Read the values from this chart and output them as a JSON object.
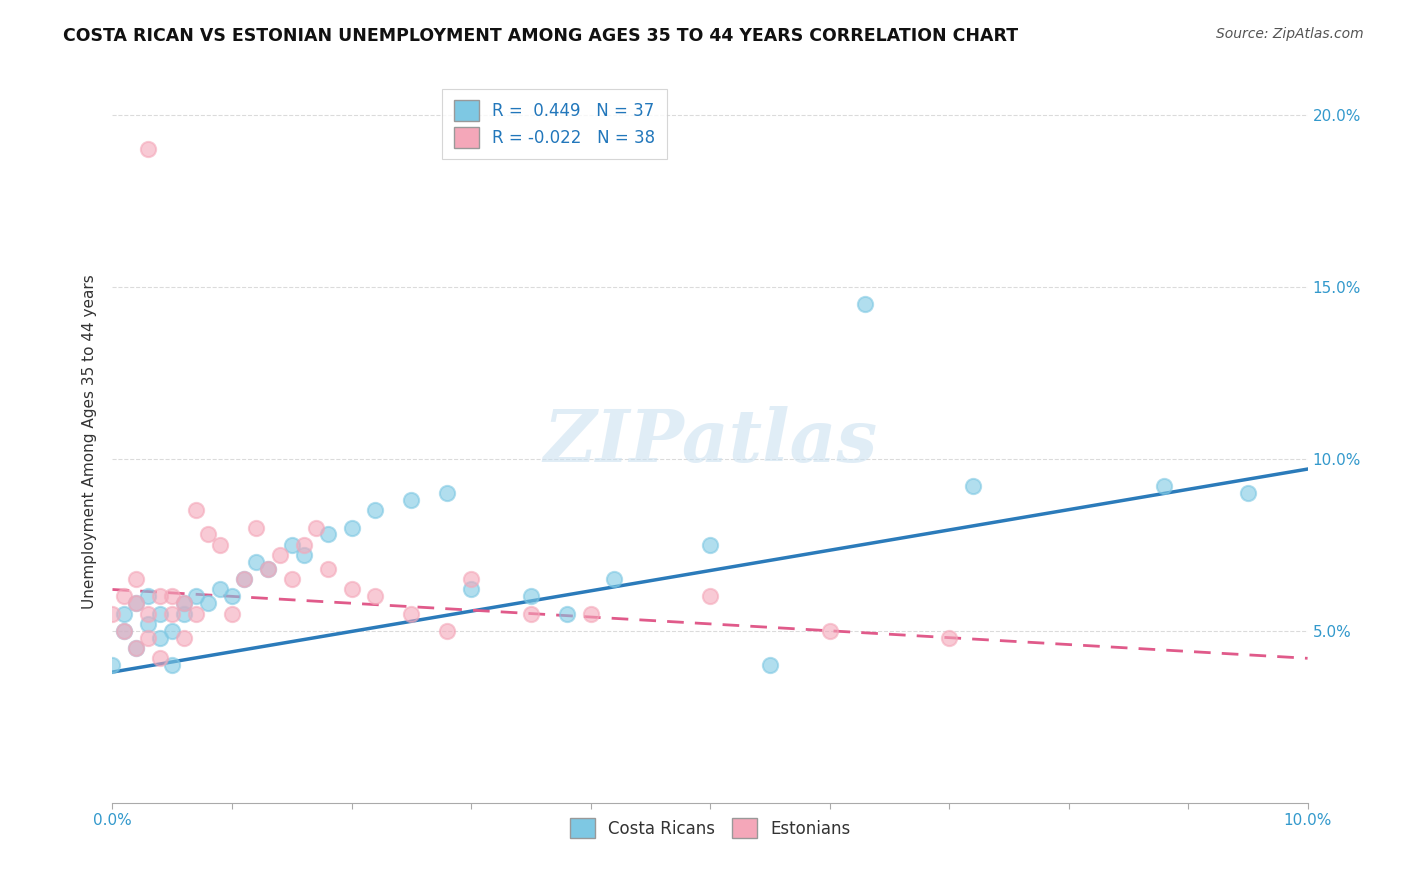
{
  "title": "COSTA RICAN VS ESTONIAN UNEMPLOYMENT AMONG AGES 35 TO 44 YEARS CORRELATION CHART",
  "source": "Source: ZipAtlas.com",
  "ylabel": "Unemployment Among Ages 35 to 44 years",
  "xlim": [
    0.0,
    0.1
  ],
  "ylim": [
    0.0,
    0.21
  ],
  "costa_rican_R": 0.449,
  "costa_rican_N": 37,
  "estonian_R": -0.022,
  "estonian_N": 38,
  "blue_color": "#7ec8e3",
  "pink_color": "#f4a7b9",
  "trend_blue": "#2b7bba",
  "trend_pink": "#e05a8a",
  "legend_label_blue": "Costa Ricans",
  "legend_label_pink": "Estonians",
  "costa_rican_x": [
    0.0,
    0.001,
    0.001,
    0.002,
    0.002,
    0.003,
    0.003,
    0.004,
    0.004,
    0.005,
    0.005,
    0.006,
    0.006,
    0.007,
    0.008,
    0.009,
    0.01,
    0.011,
    0.012,
    0.013,
    0.015,
    0.016,
    0.018,
    0.02,
    0.022,
    0.025,
    0.028,
    0.03,
    0.035,
    0.038,
    0.042,
    0.05,
    0.055,
    0.063,
    0.072,
    0.088,
    0.095
  ],
  "costa_rican_y": [
    0.04,
    0.05,
    0.055,
    0.045,
    0.058,
    0.052,
    0.06,
    0.048,
    0.055,
    0.04,
    0.05,
    0.055,
    0.058,
    0.06,
    0.058,
    0.062,
    0.06,
    0.065,
    0.07,
    0.068,
    0.075,
    0.072,
    0.078,
    0.08,
    0.085,
    0.088,
    0.09,
    0.062,
    0.06,
    0.055,
    0.065,
    0.075,
    0.04,
    0.145,
    0.092,
    0.092,
    0.09
  ],
  "estonian_x": [
    0.0,
    0.001,
    0.001,
    0.002,
    0.002,
    0.002,
    0.003,
    0.003,
    0.003,
    0.004,
    0.004,
    0.005,
    0.005,
    0.006,
    0.006,
    0.007,
    0.007,
    0.008,
    0.009,
    0.01,
    0.011,
    0.012,
    0.013,
    0.014,
    0.015,
    0.016,
    0.017,
    0.018,
    0.02,
    0.022,
    0.025,
    0.028,
    0.03,
    0.035,
    0.04,
    0.05,
    0.06,
    0.07
  ],
  "estonian_y": [
    0.055,
    0.05,
    0.06,
    0.045,
    0.058,
    0.065,
    0.048,
    0.055,
    0.19,
    0.042,
    0.06,
    0.055,
    0.06,
    0.048,
    0.058,
    0.055,
    0.085,
    0.078,
    0.075,
    0.055,
    0.065,
    0.08,
    0.068,
    0.072,
    0.065,
    0.075,
    0.08,
    0.068,
    0.062,
    0.06,
    0.055,
    0.05,
    0.065,
    0.055,
    0.055,
    0.06,
    0.05,
    0.048
  ],
  "background_color": "#ffffff",
  "grid_color": "#cccccc"
}
